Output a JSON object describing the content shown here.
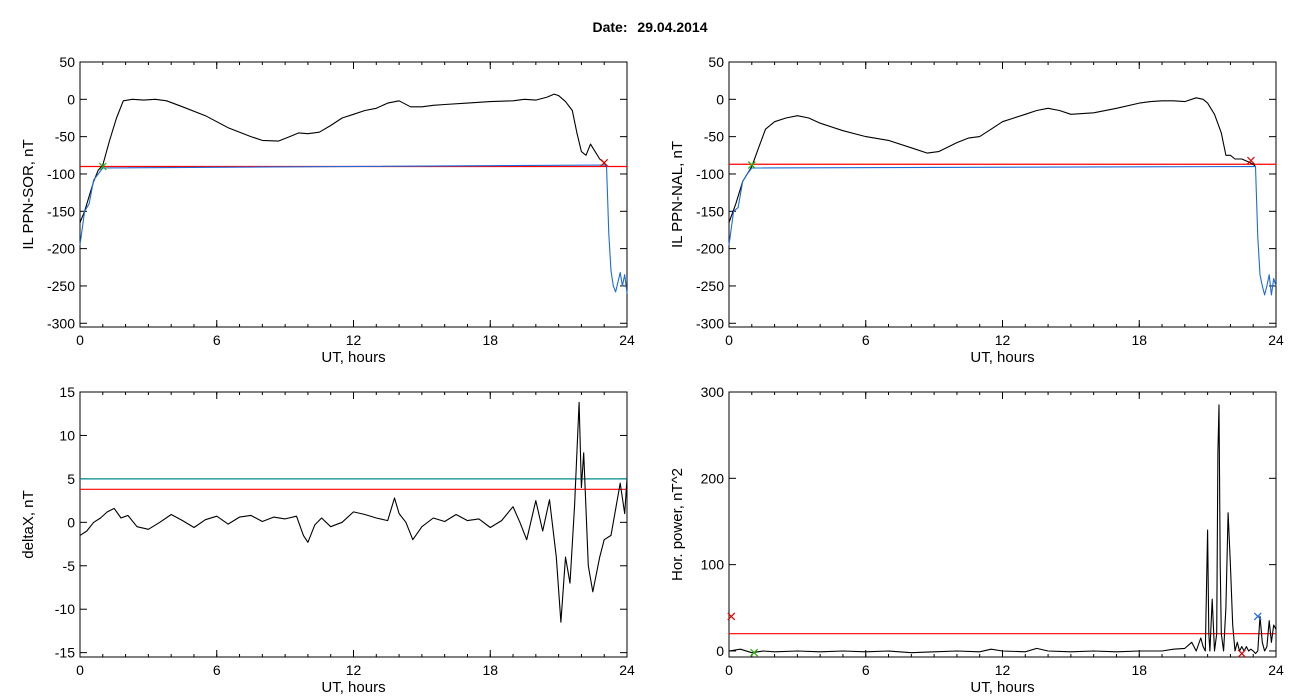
{
  "header": {
    "date_label": "Date:",
    "date_value": "29.04.2014"
  },
  "chart_data": [
    {
      "type": "line",
      "xlabel": "UT, hours",
      "ylabel": "IL PPN-SOR, nT",
      "xlim": [
        0,
        24
      ],
      "ylim": [
        -305,
        50
      ],
      "xticks": [
        0,
        6,
        12,
        18,
        24
      ],
      "yticks": [
        50,
        0,
        -50,
        -100,
        -150,
        -200,
        -250,
        -300
      ],
      "threshold": {
        "value": -90,
        "color": "#ff0000"
      },
      "series": [
        {
          "color": "#000000",
          "x": [
            0.0,
            0.2,
            0.4,
            0.6,
            0.8,
            1.0,
            1.3,
            1.6,
            1.9,
            2.3,
            2.8,
            3.3,
            3.8,
            4.5,
            5.5,
            6.5,
            7.5,
            8.0,
            8.7,
            9.2,
            9.6,
            10.0,
            10.5,
            11.0,
            11.5,
            12.0,
            12.5,
            13.0,
            13.5,
            14.0,
            14.5,
            15.0,
            15.5,
            16.0,
            17.0,
            18.0,
            19.0,
            19.5,
            20.0,
            20.5,
            20.8,
            21.0,
            21.3,
            21.6,
            21.8,
            22.0,
            22.2,
            22.4,
            22.6,
            22.8,
            23.0,
            23.1
          ],
          "y": [
            -165,
            -150,
            -130,
            -110,
            -95,
            -88,
            -55,
            -25,
            -2,
            0,
            -1,
            0,
            -2,
            -10,
            -22,
            -38,
            -50,
            -55,
            -56,
            -50,
            -45,
            -46,
            -44,
            -35,
            -25,
            -20,
            -15,
            -12,
            -5,
            -2,
            -10,
            -10,
            -8,
            -7,
            -5,
            -3,
            -2,
            0,
            -1,
            3,
            7,
            5,
            -3,
            -15,
            -45,
            -70,
            -75,
            -60,
            -70,
            -80,
            -85,
            -90
          ]
        },
        {
          "color": "#1e6ad8",
          "x": [
            0.0,
            0.2,
            0.4,
            0.6,
            0.8,
            1.0,
            23.1,
            23.2,
            23.3,
            23.4,
            23.5,
            23.6,
            23.7,
            23.8,
            23.9,
            24.0
          ],
          "y": [
            -195,
            -150,
            -140,
            -108,
            -100,
            -92,
            -88,
            -180,
            -230,
            -250,
            -258,
            -245,
            -232,
            -250,
            -235,
            -260
          ]
        }
      ],
      "markers": [
        {
          "x": 1.0,
          "y": -90,
          "color": "#22b000"
        },
        {
          "x": 23.0,
          "y": -85,
          "color": "#e00000"
        }
      ]
    },
    {
      "type": "line",
      "xlabel": "UT, hours",
      "ylabel": "IL PPN-NAL, nT",
      "xlim": [
        0,
        24
      ],
      "ylim": [
        -305,
        50
      ],
      "xticks": [
        0,
        6,
        12,
        18,
        24
      ],
      "yticks": [
        50,
        0,
        -50,
        -100,
        -150,
        -200,
        -250,
        -300
      ],
      "threshold": {
        "value": -87,
        "color": "#ff0000"
      },
      "series": [
        {
          "color": "#000000",
          "x": [
            0.0,
            0.3,
            0.6,
            1.0,
            1.3,
            1.6,
            2.0,
            2.5,
            3.0,
            3.5,
            4.0,
            5.0,
            6.0,
            7.0,
            8.0,
            8.7,
            9.2,
            10.0,
            10.5,
            11.0,
            11.5,
            12.0,
            12.5,
            13.0,
            13.5,
            14.0,
            14.5,
            15.0,
            16.0,
            17.0,
            18.0,
            18.5,
            19.0,
            19.5,
            20.0,
            20.5,
            20.8,
            21.0,
            21.3,
            21.6,
            21.8,
            22.0,
            22.2,
            22.5,
            22.8,
            23.0,
            23.1
          ],
          "y": [
            -165,
            -140,
            -110,
            -90,
            -65,
            -40,
            -30,
            -25,
            -22,
            -25,
            -32,
            -42,
            -50,
            -55,
            -65,
            -72,
            -70,
            -58,
            -52,
            -50,
            -40,
            -30,
            -25,
            -20,
            -15,
            -12,
            -15,
            -20,
            -18,
            -12,
            -5,
            -3,
            -2,
            -2,
            -3,
            2,
            0,
            -5,
            -20,
            -45,
            -75,
            -75,
            -80,
            -80,
            -84,
            -87,
            -90
          ]
        },
        {
          "color": "#1e6ad8",
          "x": [
            0.0,
            0.2,
            0.4,
            0.6,
            0.8,
            1.0,
            23.1,
            23.2,
            23.3,
            23.4,
            23.5,
            23.6,
            23.7,
            23.8,
            23.9,
            24.0
          ],
          "y": [
            -195,
            -150,
            -145,
            -110,
            -100,
            -92,
            -90,
            -185,
            -235,
            -250,
            -262,
            -250,
            -235,
            -262,
            -240,
            -250
          ]
        }
      ],
      "markers": [
        {
          "x": 1.0,
          "y": -88,
          "color": "#22b000"
        },
        {
          "x": 22.9,
          "y": -82,
          "color": "#e00000"
        }
      ]
    },
    {
      "type": "line",
      "xlabel": "UT, hours",
      "ylabel": "deltaX, nT",
      "xlim": [
        0,
        24
      ],
      "ylim": [
        -15.5,
        15
      ],
      "xticks": [
        0,
        6,
        12,
        18,
        24
      ],
      "yticks": [
        15,
        10,
        5,
        0,
        -5,
        -10,
        -15
      ],
      "thresholds": [
        {
          "value": 5.0,
          "color": "#008b8b"
        },
        {
          "value": 3.8,
          "color": "#ff0000"
        }
      ],
      "series": [
        {
          "color": "#000000",
          "x": [
            0.0,
            0.3,
            0.6,
            0.9,
            1.2,
            1.5,
            1.8,
            2.1,
            2.5,
            3.0,
            3.5,
            4.0,
            4.5,
            5.0,
            5.5,
            6.0,
            6.5,
            7.0,
            7.5,
            8.0,
            8.5,
            9.0,
            9.5,
            9.8,
            10.0,
            10.3,
            10.6,
            11.0,
            11.5,
            12.0,
            12.5,
            13.0,
            13.5,
            13.8,
            14.0,
            14.3,
            14.6,
            15.0,
            15.5,
            16.0,
            16.5,
            17.0,
            17.5,
            18.0,
            18.5,
            19.0,
            19.3,
            19.6,
            20.0,
            20.3,
            20.6,
            20.9,
            21.1,
            21.3,
            21.5,
            21.7,
            21.9,
            22.0,
            22.1,
            22.3,
            22.5,
            22.8,
            23.0,
            23.3,
            23.5,
            23.7,
            23.9,
            24.0
          ],
          "y": [
            -1.5,
            -1.0,
            0.0,
            0.5,
            1.2,
            1.6,
            0.5,
            0.8,
            -0.5,
            -0.8,
            0.0,
            0.9,
            0.2,
            -0.6,
            0.3,
            0.7,
            -0.2,
            0.6,
            0.8,
            0.1,
            0.6,
            0.4,
            0.7,
            -1.5,
            -2.3,
            -0.3,
            0.5,
            -0.5,
            0.0,
            1.2,
            0.9,
            0.5,
            0.2,
            2.8,
            1.0,
            0.0,
            -2.0,
            -0.5,
            0.5,
            0.1,
            0.9,
            0.2,
            0.4,
            -0.6,
            0.2,
            1.8,
            0.0,
            -2.0,
            2.5,
            -1.0,
            2.6,
            -4.0,
            -11.5,
            -4.0,
            -7.0,
            2.0,
            13.8,
            4.0,
            8.0,
            -5.0,
            -8.0,
            -4.0,
            -2.0,
            -1.5,
            1.5,
            4.5,
            1.0,
            5.0
          ]
        }
      ]
    },
    {
      "type": "line",
      "xlabel": "UT, hours",
      "ylabel": "Hor. power, nT^2",
      "xlim": [
        0,
        24
      ],
      "ylim": [
        -7,
        300
      ],
      "xticks": [
        0,
        6,
        12,
        18,
        24
      ],
      "yticks": [
        300,
        200,
        100,
        0
      ],
      "threshold": {
        "value": 20,
        "color": "#ff0000"
      },
      "series": [
        {
          "color": "#000000",
          "x": [
            0.0,
            0.5,
            1.0,
            1.5,
            2.0,
            3.0,
            4.0,
            5.0,
            6.0,
            7.0,
            8.0,
            9.0,
            10.0,
            11.0,
            11.5,
            12.0,
            13.0,
            13.5,
            14.0,
            15.0,
            16.0,
            17.0,
            18.0,
            19.0,
            19.5,
            20.0,
            20.3,
            20.5,
            20.7,
            20.8,
            20.9,
            21.0,
            21.05,
            21.1,
            21.2,
            21.3,
            21.4,
            21.45,
            21.5,
            21.55,
            21.6,
            21.7,
            21.8,
            21.9,
            22.0,
            22.1,
            22.2,
            22.3,
            22.4,
            22.5,
            22.6,
            22.7,
            22.8,
            22.9,
            23.0,
            23.1,
            23.2,
            23.3,
            23.4,
            23.5,
            23.6,
            23.7,
            23.8,
            23.9,
            24.0
          ],
          "y": [
            0,
            2,
            -2,
            0,
            -1,
            0,
            -1,
            0,
            -1,
            0,
            -2,
            -1,
            0,
            -1,
            2,
            0,
            -1,
            3,
            0,
            -1,
            0,
            -1,
            0,
            0,
            2,
            3,
            10,
            0,
            15,
            5,
            0,
            140,
            20,
            0,
            60,
            0,
            20,
            230,
            285,
            100,
            20,
            0,
            50,
            160,
            100,
            30,
            0,
            10,
            0,
            5,
            0,
            5,
            0,
            2,
            0,
            -3,
            0,
            40,
            10,
            0,
            5,
            35,
            10,
            30,
            25
          ]
        }
      ],
      "markers": [
        {
          "x": 0.1,
          "y": 40,
          "color": "#e00000"
        },
        {
          "x": 1.1,
          "y": -2,
          "color": "#22b000"
        },
        {
          "x": 22.5,
          "y": -3,
          "color": "#e00000"
        },
        {
          "x": 23.2,
          "y": 40,
          "color": "#1e6ad8"
        }
      ]
    }
  ]
}
